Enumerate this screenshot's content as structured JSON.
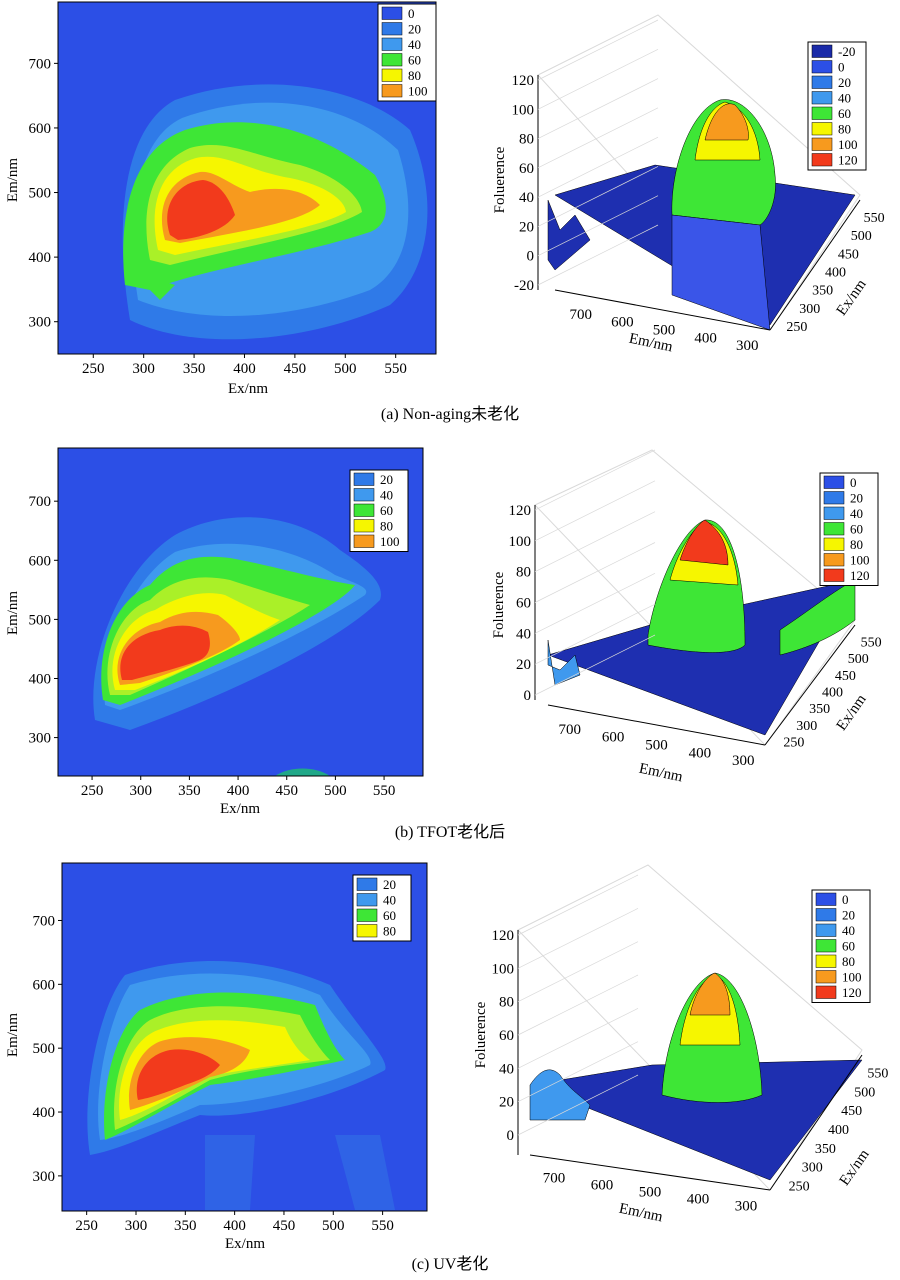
{
  "colors": {
    "blue_bg": "#2c4fe6",
    "blue_halo": "#2f7ae8",
    "blue_mid": "#3f99ee",
    "cyan": "#36c7e2",
    "green": "#3ee636",
    "yellow": "#f6f600",
    "orange": "#f79a1e",
    "red": "#f23a1c",
    "grid": "#d9d9d9",
    "floor": "#1e2fb0"
  },
  "chart_data": [
    {
      "id": "a",
      "type": "heatmap",
      "subtype": "contour",
      "caption": "(a) Non-aging未老化",
      "xlabel": "Ex/nm",
      "ylabel": "Em/nm",
      "x_ticks": [
        "250",
        "300",
        "350",
        "400",
        "450",
        "500",
        "550"
      ],
      "y_ticks": [
        "300",
        "400",
        "500",
        "600",
        "700"
      ],
      "xlim": [
        215,
        590
      ],
      "ylim": [
        250,
        795
      ],
      "legend_position": "top-right",
      "legend": [
        "0",
        "20",
        "40",
        "60",
        "80",
        "100"
      ],
      "peaks": [
        {
          "ex": 360,
          "em": 465,
          "max_level": 100
        },
        {
          "ex": 430,
          "em": 475,
          "max_level": 80
        }
      ]
    },
    {
      "id": "a3d",
      "type": "surface",
      "xlabel": "Em/nm",
      "ylabel": "Ex/nm",
      "zlabel": "Foluerence",
      "x_ticks": [
        "700",
        "600",
        "500",
        "400",
        "300"
      ],
      "y_ticks": [
        "250",
        "300",
        "350",
        "400",
        "450",
        "500",
        "550"
      ],
      "z_ticks": [
        "-20",
        "0",
        "20",
        "40",
        "60",
        "80",
        "100",
        "120"
      ],
      "zlim": [
        -20,
        120
      ],
      "legend_position": "top-right",
      "legend": [
        "-20",
        "0",
        "20",
        "40",
        "60",
        "80",
        "100",
        "120"
      ],
      "peak_value": 102
    },
    {
      "id": "b",
      "type": "heatmap",
      "subtype": "contour",
      "caption": "(b) TFOT老化后",
      "xlabel": "Ex/nm",
      "ylabel": "Em/nm",
      "x_ticks": [
        "250",
        "300",
        "350",
        "400",
        "450",
        "500",
        "550"
      ],
      "y_ticks": [
        "300",
        "400",
        "500",
        "600",
        "700"
      ],
      "xlim": [
        215,
        590
      ],
      "ylim": [
        235,
        790
      ],
      "legend_position": "top-right",
      "legend": [
        "20",
        "40",
        "60",
        "80",
        "100"
      ],
      "peaks": [
        {
          "ex": 320,
          "em": 440,
          "max_level": 100
        },
        {
          "ex": 360,
          "em": 500,
          "max_level": 80
        }
      ]
    },
    {
      "id": "b3d",
      "type": "surface",
      "xlabel": "Em/nm",
      "ylabel": "Ex/nm",
      "zlabel": "Foluerence",
      "x_ticks": [
        "700",
        "600",
        "500",
        "400",
        "300"
      ],
      "y_ticks": [
        "250",
        "300",
        "350",
        "400",
        "450",
        "500",
        "550"
      ],
      "z_ticks": [
        "0",
        "20",
        "40",
        "60",
        "80",
        "100",
        "120"
      ],
      "zlim": [
        0,
        120
      ],
      "legend_position": "top-right",
      "legend": [
        "0",
        "20",
        "40",
        "60",
        "80",
        "100",
        "120"
      ],
      "peak_value": 110
    },
    {
      "id": "c",
      "type": "heatmap",
      "subtype": "contour",
      "caption": "(c) UV老化",
      "xlabel": "Ex/nm",
      "ylabel": "Em/nm",
      "x_ticks": [
        "250",
        "300",
        "350",
        "400",
        "450",
        "500",
        "550"
      ],
      "y_ticks": [
        "300",
        "400",
        "500",
        "600",
        "700"
      ],
      "xlim": [
        225,
        595
      ],
      "ylim": [
        245,
        790
      ],
      "legend_position": "top-right",
      "legend": [
        "20",
        "40",
        "60",
        "80"
      ],
      "peaks": [
        {
          "ex": 340,
          "em": 460,
          "max_level": 80
        }
      ]
    },
    {
      "id": "c3d",
      "type": "surface",
      "xlabel": "Em/nm",
      "ylabel": "Ex/nm",
      "zlabel": "Foluerence",
      "x_ticks": [
        "700",
        "600",
        "500",
        "400",
        "300"
      ],
      "y_ticks": [
        "250",
        "300",
        "350",
        "400",
        "450",
        "500",
        "550"
      ],
      "z_ticks": [
        "0",
        "20",
        "40",
        "60",
        "80",
        "100",
        "120"
      ],
      "zlim": [
        0,
        120
      ],
      "legend_position": "top-right",
      "legend": [
        "0",
        "20",
        "40",
        "60",
        "80",
        "100",
        "120"
      ],
      "peak_value": 92
    }
  ]
}
